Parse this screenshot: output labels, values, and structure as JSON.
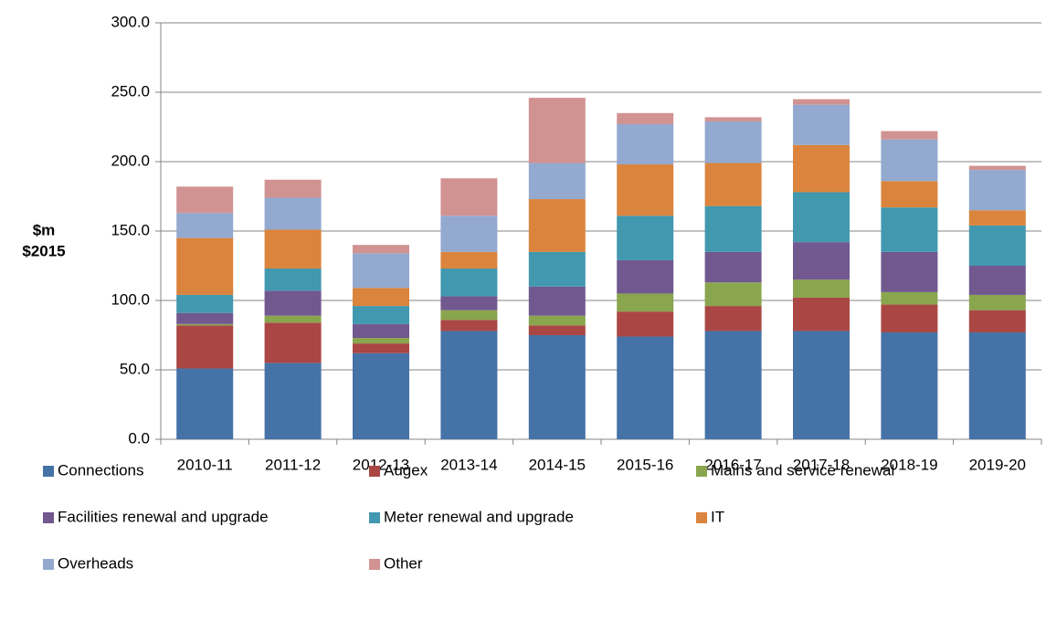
{
  "chart_data": {
    "type": "bar",
    "stacked": true,
    "y_label": [
      "$m",
      "$2015"
    ],
    "categories": [
      "2010-11",
      "2011-12",
      "2012-13",
      "2013-14",
      "2014-15",
      "2015-16",
      "2016-17",
      "2017-18",
      "2018-19",
      "2019-20"
    ],
    "series": [
      {
        "name": "Connections",
        "color": "#4572a7",
        "values": [
          51,
          55,
          62,
          78,
          75,
          74,
          78,
          78,
          77,
          77
        ]
      },
      {
        "name": "Augex",
        "color": "#aa4643",
        "values": [
          31,
          29,
          7,
          8,
          7,
          18,
          18,
          24,
          20,
          16
        ]
      },
      {
        "name": "Mains and service renewal",
        "color": "#89a54e",
        "values": [
          1,
          5,
          4,
          7,
          7,
          13,
          17,
          13,
          9,
          11
        ]
      },
      {
        "name": "Facilities renewal and upgrade",
        "color": "#71588f",
        "values": [
          8,
          18,
          10,
          10,
          21,
          24,
          22,
          27,
          29,
          21
        ]
      },
      {
        "name": "Meter renewal and upgrade",
        "color": "#4198af",
        "values": [
          13,
          16,
          13,
          20,
          25,
          32,
          33,
          36,
          32,
          29
        ]
      },
      {
        "name": "IT",
        "color": "#db843d",
        "values": [
          41,
          28,
          13,
          12,
          38,
          37,
          31,
          34,
          19,
          11
        ]
      },
      {
        "name": "Overheads",
        "color": "#93a9cf",
        "values": [
          18,
          23,
          25,
          26,
          26,
          29,
          30,
          29,
          30,
          29
        ]
      },
      {
        "name": "Other",
        "color": "#d19392",
        "values": [
          19,
          13,
          6,
          27,
          47,
          8,
          3,
          4,
          6,
          3
        ]
      }
    ],
    "ylim": [
      0,
      300
    ],
    "yticks": [
      {
        "value": 0,
        "label": "0.0"
      },
      {
        "value": 50,
        "label": "50.0"
      },
      {
        "value": 100,
        "label": "100.0"
      },
      {
        "value": 150,
        "label": "150.0"
      },
      {
        "value": 200,
        "label": "200.0"
      },
      {
        "value": 250,
        "label": "250.0"
      },
      {
        "value": 300,
        "label": "300.0"
      }
    ],
    "grid": true
  }
}
